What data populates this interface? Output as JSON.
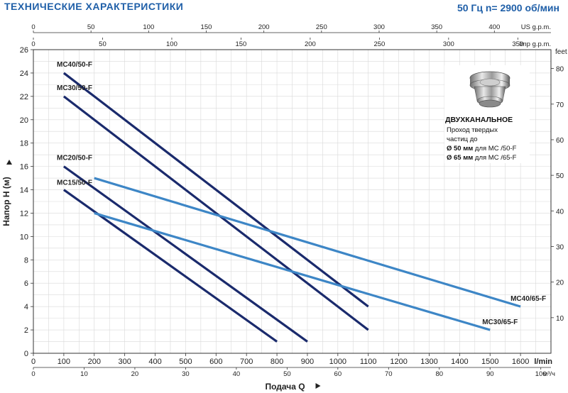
{
  "header": {
    "title": "ТЕХНИЧЕСКИЕ ХАРАКТЕРИСТИКИ",
    "speed": "50 Гц  n= 2900 об/мин"
  },
  "info_box": {
    "title": "ДВУХКАНАЛЬНОЕ",
    "line1": "Проход твердых",
    "line2": "частиц до",
    "line3_bold": "Ø 50 мм",
    "line3_rest": " для MC /50-F",
    "line4_bold": "Ø 65 мм",
    "line4_rest": " для MC /65-F",
    "icon": "impeller-fitting-icon"
  },
  "chart_data": {
    "type": "line",
    "title": "",
    "xlabel": "Подача Q",
    "ylabel": "Напор H (м)",
    "x_unit": "l/min",
    "xlim": [
      0,
      1700
    ],
    "ylim": [
      0,
      26
    ],
    "x_ticks": [
      0,
      100,
      200,
      300,
      400,
      500,
      600,
      700,
      800,
      900,
      1000,
      1100,
      1200,
      1300,
      1400,
      1500,
      1600
    ],
    "y_ticks": [
      0,
      2,
      4,
      6,
      8,
      10,
      12,
      14,
      16,
      18,
      20,
      22,
      24,
      26
    ],
    "grid": true,
    "secondary_axes": {
      "top_usgpm": {
        "label": "US g.p.m.",
        "ticks": [
          0,
          50,
          100,
          150,
          200,
          250,
          300,
          350,
          400
        ]
      },
      "top_imp": {
        "label": "Imp g.p.m.",
        "ticks": [
          0,
          50,
          100,
          150,
          200,
          250,
          300,
          350
        ]
      },
      "bottom_m3h": {
        "label": "м³/ч",
        "ticks": [
          0,
          10,
          20,
          30,
          40,
          50,
          60,
          70,
          80,
          90,
          100
        ]
      },
      "right_feet": {
        "label": "feet",
        "ticks": [
          10,
          20,
          30,
          40,
          50,
          60,
          70,
          80
        ]
      }
    },
    "series": [
      {
        "name": "MC40/50-F",
        "color": "#1a2a6c",
        "x": [
          100,
          1100
        ],
        "y": [
          24,
          4
        ]
      },
      {
        "name": "MC30/50-F",
        "color": "#1a2a6c",
        "x": [
          100,
          1100
        ],
        "y": [
          22,
          2
        ]
      },
      {
        "name": "MC20/50-F",
        "color": "#1a2a6c",
        "x": [
          100,
          900
        ],
        "y": [
          16,
          1
        ]
      },
      {
        "name": "MC15/50-F",
        "color": "#1a2a6c",
        "x": [
          100,
          800
        ],
        "y": [
          14,
          1
        ]
      },
      {
        "name": "MC40/65-F",
        "color": "#3d86c6",
        "x": [
          200,
          1600
        ],
        "y": [
          15,
          4
        ]
      },
      {
        "name": "MC30/65-F",
        "color": "#3d86c6",
        "x": [
          200,
          1500
        ],
        "y": [
          12,
          2
        ]
      }
    ]
  }
}
